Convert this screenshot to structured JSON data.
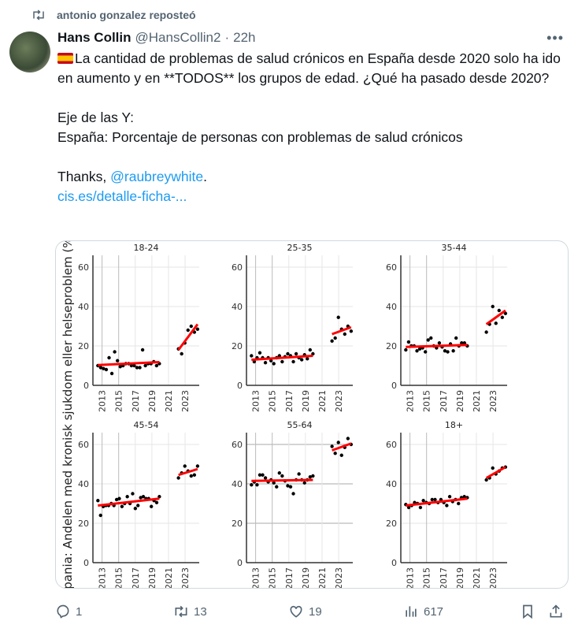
{
  "repost": {
    "label": "antonio gonzalez reposteó"
  },
  "tweet": {
    "name": "Hans Collin",
    "handle": "@HansCollin2",
    "sep": "·",
    "time": "22h",
    "lines": [
      "La cantidad de problemas de salud crónicos en España desde 2020 solo ha ido en aumento y en **TODOS** los grupos de edad. ¿Qué ha pasado desde 2020?",
      "Eje de las Y:",
      "España: Porcentaje de personas con problemas de salud crónicos"
    ],
    "thanks": "Thanks, ",
    "mention": "@raubreywhite",
    "thanks_end": ".",
    "link": "cis.es/detalle-ficha-..."
  },
  "actions": {
    "replies": "1",
    "reposts": "13",
    "likes": "19",
    "views": "617"
  },
  "chart_data": {
    "type": "scatter",
    "ylabel": "Spania: Andelen med kronisk sjukdom eller helseproblem (%)",
    "ylim": [
      0,
      66
    ],
    "xlim": [
      2011.9,
      2024.7
    ],
    "yticks": [
      0,
      20,
      40,
      60
    ],
    "xticks": [
      "2013",
      "2015",
      "2017",
      "2019",
      "2021",
      "2023"
    ],
    "pre_x_range": [
      2012.5,
      2019.9
    ],
    "post_x_range": [
      2022.2,
      2024.5
    ],
    "panels": [
      {
        "title": "18-24",
        "pre": [
          10,
          9,
          8.5,
          8,
          14,
          6,
          17,
          12.5,
          9.5,
          10,
          11,
          11,
          10,
          10,
          9,
          9,
          18,
          10,
          11,
          11,
          12,
          10,
          11
        ],
        "post": [
          18.5,
          16,
          21.5,
          28,
          30,
          27,
          28.5
        ],
        "fit_pre": [
          10.3,
          11.8
        ],
        "fit_post": [
          18,
          31
        ]
      },
      {
        "title": "25-35",
        "pre": [
          15,
          12,
          14,
          16.5,
          14,
          11.5,
          14,
          12.5,
          11,
          14,
          15,
          12,
          14.5,
          16,
          15,
          12,
          16,
          14,
          13,
          15.5,
          13.5,
          18,
          16
        ],
        "post": [
          22.5,
          24,
          34.5,
          28.5,
          26,
          30,
          27.5
        ],
        "fit_pre": [
          13,
          15
        ],
        "fit_post": [
          26,
          29.5
        ]
      },
      {
        "title": "35-44",
        "pre": [
          18,
          22,
          20,
          20,
          17.5,
          18.5,
          19,
          17,
          23,
          24,
          20,
          19,
          21.5,
          19.5,
          17.5,
          17,
          21,
          17.5,
          24,
          20,
          21.5,
          21.5,
          20
        ],
        "post": [
          27,
          31,
          40,
          31.5,
          38,
          34.5,
          36.5
        ],
        "fit_pre": [
          19.5,
          20.5
        ],
        "fit_post": [
          31,
          38
        ]
      },
      {
        "title": "45-54",
        "pre": [
          31.5,
          24,
          28.5,
          29,
          29,
          30,
          29,
          32,
          32.5,
          28.5,
          30,
          33.5,
          30,
          35,
          27.5,
          29,
          33,
          33.5,
          32.5,
          32.5,
          28.5,
          31.5,
          30.5,
          33.5
        ],
        "post": [
          43,
          45.5,
          49,
          46.5,
          44,
          44.5,
          49
        ],
        "fit_pre": [
          29,
          32.5
        ],
        "fit_post": [
          44.5,
          47.5
        ]
      },
      {
        "title": "55-64",
        "pre": [
          39.5,
          41,
          39.5,
          44.5,
          44.5,
          43,
          41,
          42,
          40.5,
          38.5,
          45.5,
          44,
          41.5,
          39,
          38.5,
          35,
          42,
          45,
          42,
          40.5,
          42,
          43.5,
          44
        ],
        "post": [
          59,
          55.5,
          61,
          54.5,
          58.5,
          63,
          60
        ],
        "fit_pre": [
          41.5,
          42
        ],
        "fit_post": [
          57,
          60.5
        ]
      },
      {
        "title": "18+",
        "pre": [
          29.5,
          28,
          29,
          30.5,
          30,
          28,
          31.5,
          30.5,
          30,
          32,
          32,
          30.5,
          32,
          30.5,
          29,
          33.5,
          31,
          32,
          30,
          33,
          33.5,
          33
        ],
        "post": [
          42,
          43,
          48,
          45,
          46.5,
          48,
          48.5
        ],
        "fit_pre": [
          29,
          32.5
        ],
        "fit_post": [
          43,
          48.5
        ]
      }
    ]
  }
}
